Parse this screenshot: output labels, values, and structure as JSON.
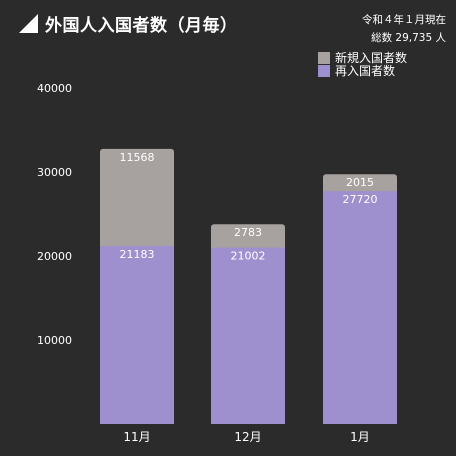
{
  "chart_data": {
    "type": "bar",
    "stacked": true,
    "title": "外国人入国者数（月毎）",
    "notes": [
      "令和４年１月現在",
      "総数 29,735 人"
    ],
    "categories": [
      "11月",
      "12月",
      "1月"
    ],
    "series": [
      {
        "name": "再入国者数",
        "values": [
          21183,
          21002,
          27720
        ],
        "color": "#9e8fce"
      },
      {
        "name": "新規入国者数",
        "values": [
          11568,
          2783,
          2015
        ],
        "color": "#a7a19f"
      }
    ],
    "ylim": [
      0,
      40000
    ],
    "yticks": [
      10000,
      20000,
      30000,
      40000
    ],
    "legend": "top-right",
    "grid": false
  }
}
